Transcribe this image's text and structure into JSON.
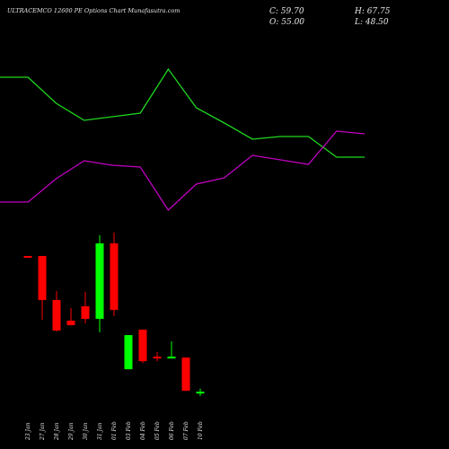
{
  "chart_data": [
    {
      "type": "line",
      "series": [
        {
          "color": "#1fd81f",
          "values": [
            414,
            414,
            385,
            366,
            370,
            374,
            423,
            380,
            363,
            345,
            348,
            348,
            325,
            325
          ]
        },
        {
          "color": "#c000c0",
          "values": [
            275,
            275,
            301,
            321,
            316,
            314,
            266,
            295,
            302,
            327,
            322,
            317,
            354,
            351
          ]
        }
      ]
    },
    {
      "type": "candlestick",
      "title": "ULTRACEMCO 12600 PE Options Chart Munafasutra.com",
      "ohlc_labels": [
        "C: 59.70",
        "H: 67.75",
        "O: 55.00",
        "L: 48.50"
      ],
      "categories": [
        "23 Jan",
        "27 Jan",
        "28 Jan",
        "29 Jan",
        "30 Jan",
        "31 Jan",
        "01 Feb",
        "03 Feb",
        "04 Feb",
        "05 Feb",
        "06 Feb",
        "07 Feb",
        "10 Feb"
      ],
      "open": [
        414.6,
        414.6,
        299.4,
        245.4,
        283.0,
        250.1,
        447.5,
        118.5,
        221.9,
        151.4,
        146.7,
        149.0,
        55.0
      ],
      "high": [
        414.6,
        414.6,
        322.9,
        278.3,
        320.6,
        468.6,
        475.7,
        207.8,
        221.9,
        163.1,
        191.3,
        149.0,
        67.75
      ],
      "low": [
        409.9,
        247.7,
        217.2,
        233.6,
        238.3,
        214.8,
        257.1,
        118.5,
        134.9,
        139.6,
        146.7,
        62.1,
        48.5
      ],
      "close": [
        409.9,
        299.4,
        219.5,
        233.6,
        250.1,
        447.5,
        273.6,
        207.8,
        139.6,
        146.7,
        151.4,
        62.1,
        59.7
      ],
      "up_color": "#00ff00",
      "down_color": "#ff0000"
    }
  ]
}
